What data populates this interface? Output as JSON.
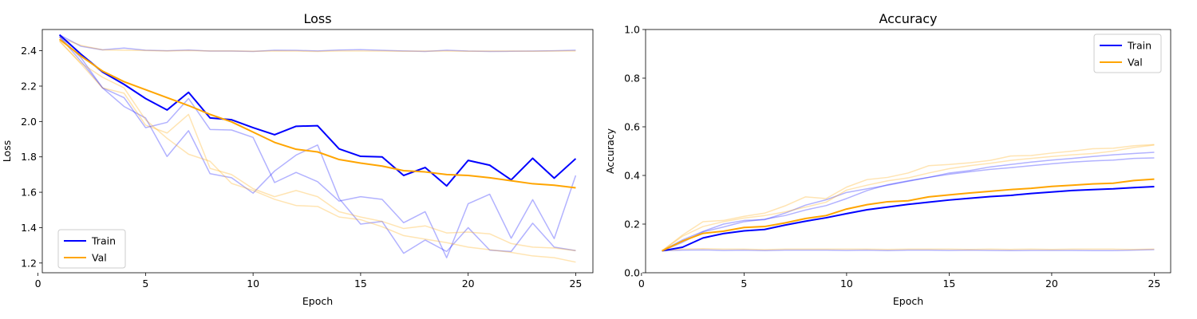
{
  "chart_data": [
    {
      "type": "line",
      "title": "Loss",
      "xlabel": "Epoch",
      "ylabel": "Loss",
      "xlim": [
        0.2,
        25.8
      ],
      "ylim": [
        1.145,
        2.52
      ],
      "xticks": [
        0,
        5,
        10,
        15,
        20,
        25
      ],
      "yticks": [
        1.2,
        1.4,
        1.6,
        1.8,
        2.0,
        2.2,
        2.4
      ],
      "ytick_labels": [
        "1.2",
        "1.4",
        "1.6",
        "1.8",
        "2.0",
        "2.2",
        "2.4"
      ],
      "legend": {
        "position": "lower-left"
      },
      "x": [
        1,
        2,
        3,
        4,
        5,
        6,
        7,
        8,
        9,
        10,
        11,
        12,
        13,
        14,
        15,
        16,
        17,
        18,
        19,
        20,
        21,
        22,
        23,
        24,
        25
      ],
      "series": [
        {
          "name": "Train",
          "role": "main",
          "color": "#0000ff",
          "values": [
            2.49,
            2.38,
            2.28,
            2.21,
            2.13,
            2.065,
            2.165,
            2.02,
            2.01,
            1.965,
            1.925,
            1.973,
            1.976,
            1.845,
            1.803,
            1.8,
            1.695,
            1.74,
            1.636,
            1.78,
            1.753,
            1.67,
            1.792,
            1.68,
            1.79
          ]
        },
        {
          "name": "Val",
          "role": "main",
          "color": "#ffa500",
          "values": [
            2.465,
            2.37,
            2.285,
            2.225,
            2.18,
            2.135,
            2.09,
            2.04,
            1.998,
            1.94,
            1.882,
            1.843,
            1.828,
            1.785,
            1.765,
            1.748,
            1.722,
            1.715,
            1.7,
            1.695,
            1.682,
            1.665,
            1.648,
            1.64,
            1.625
          ]
        },
        {
          "role": "faint",
          "color": "#0000ff",
          "values": [
            2.49,
            2.425,
            2.405,
            2.415,
            2.403,
            2.4,
            2.404,
            2.398,
            2.398,
            2.396,
            2.403,
            2.402,
            2.399,
            2.404,
            2.406,
            2.402,
            2.399,
            2.396,
            2.403,
            2.398,
            2.396,
            2.397,
            2.398,
            2.4,
            2.403
          ]
        },
        {
          "role": "faint",
          "color": "#0000ff",
          "values": [
            2.48,
            2.36,
            2.19,
            2.135,
            1.965,
            1.995,
            2.13,
            1.955,
            1.952,
            1.91,
            1.655,
            1.712,
            1.66,
            1.55,
            1.575,
            1.56,
            1.428,
            1.49,
            1.23,
            1.535,
            1.589,
            1.34,
            1.558,
            1.338,
            1.695
          ]
        },
        {
          "role": "faint",
          "color": "#0000ff",
          "values": [
            2.48,
            2.34,
            2.19,
            2.085,
            2.02,
            1.802,
            1.948,
            1.705,
            1.682,
            1.595,
            1.72,
            1.81,
            1.867,
            1.565,
            1.42,
            1.435,
            1.255,
            1.33,
            1.265,
            1.4,
            1.273,
            1.265,
            1.425,
            1.29,
            1.27
          ]
        },
        {
          "role": "faint",
          "color": "#ffa500",
          "values": [
            2.475,
            2.43,
            2.405,
            2.403,
            2.401,
            2.399,
            2.401,
            2.399,
            2.399,
            2.397,
            2.399,
            2.398,
            2.396,
            2.399,
            2.399,
            2.398,
            2.397,
            2.398,
            2.398,
            2.397,
            2.398,
            2.398,
            2.397,
            2.398,
            2.399
          ]
        },
        {
          "role": "faint",
          "color": "#ffa500",
          "values": [
            2.455,
            2.325,
            2.19,
            2.16,
            1.98,
            1.935,
            2.04,
            1.735,
            1.7,
            1.62,
            1.575,
            1.61,
            1.575,
            1.49,
            1.46,
            1.435,
            1.395,
            1.41,
            1.37,
            1.375,
            1.365,
            1.31,
            1.29,
            1.285,
            1.27
          ]
        },
        {
          "role": "faint",
          "color": "#ffa500",
          "values": [
            2.455,
            2.33,
            2.25,
            2.19,
            2.01,
            1.905,
            1.815,
            1.775,
            1.65,
            1.61,
            1.56,
            1.525,
            1.52,
            1.46,
            1.445,
            1.405,
            1.355,
            1.335,
            1.315,
            1.29,
            1.275,
            1.26,
            1.24,
            1.23,
            1.205
          ]
        }
      ]
    },
    {
      "type": "line",
      "title": "Accuracy",
      "xlabel": "Epoch",
      "ylabel": "Accuracy",
      "xlim": [
        0.2,
        25.8
      ],
      "ylim": [
        0.0,
        1.0
      ],
      "xticks": [
        0,
        5,
        10,
        15,
        20,
        25
      ],
      "yticks": [
        0.0,
        0.2,
        0.4,
        0.6,
        0.8,
        1.0
      ],
      "ytick_labels": [
        "0.0",
        "0.2",
        "0.4",
        "0.6",
        "0.8",
        "1.0"
      ],
      "legend": {
        "position": "upper-right"
      },
      "x": [
        1,
        2,
        3,
        4,
        5,
        6,
        7,
        8,
        9,
        10,
        11,
        12,
        13,
        14,
        15,
        16,
        17,
        18,
        19,
        20,
        21,
        22,
        23,
        24,
        25
      ],
      "series": [
        {
          "name": "Train",
          "role": "main",
          "color": "#0000ff",
          "values": [
            0.09,
            0.105,
            0.143,
            0.161,
            0.172,
            0.178,
            0.196,
            0.212,
            0.226,
            0.243,
            0.259,
            0.27,
            0.281,
            0.29,
            0.299,
            0.306,
            0.313,
            0.318,
            0.326,
            0.332,
            0.338,
            0.342,
            0.345,
            0.35,
            0.354
          ]
        },
        {
          "name": "Val",
          "role": "main",
          "color": "#ffa500",
          "values": [
            0.09,
            0.13,
            0.162,
            0.171,
            0.186,
            0.19,
            0.205,
            0.223,
            0.235,
            0.262,
            0.28,
            0.292,
            0.296,
            0.312,
            0.32,
            0.328,
            0.335,
            0.342,
            0.347,
            0.355,
            0.36,
            0.365,
            0.368,
            0.379,
            0.385
          ]
        },
        {
          "role": "faint",
          "color": "#0000ff",
          "values": [
            0.09,
            0.093,
            0.094,
            0.092,
            0.093,
            0.091,
            0.093,
            0.093,
            0.093,
            0.092,
            0.093,
            0.091,
            0.093,
            0.093,
            0.092,
            0.093,
            0.092,
            0.091,
            0.092,
            0.092,
            0.092,
            0.091,
            0.091,
            0.093,
            0.095
          ]
        },
        {
          "role": "faint",
          "color": "#0000ff",
          "values": [
            0.09,
            0.125,
            0.168,
            0.188,
            0.21,
            0.22,
            0.235,
            0.258,
            0.276,
            0.305,
            0.338,
            0.362,
            0.378,
            0.392,
            0.405,
            0.415,
            0.425,
            0.432,
            0.44,
            0.448,
            0.455,
            0.46,
            0.463,
            0.47,
            0.472
          ]
        },
        {
          "role": "faint",
          "color": "#0000ff",
          "values": [
            0.09,
            0.135,
            0.17,
            0.2,
            0.215,
            0.218,
            0.245,
            0.278,
            0.3,
            0.33,
            0.345,
            0.36,
            0.376,
            0.392,
            0.41,
            0.42,
            0.435,
            0.445,
            0.455,
            0.463,
            0.47,
            0.478,
            0.485,
            0.49,
            0.495
          ]
        },
        {
          "role": "faint",
          "color": "#ffa500",
          "values": [
            0.09,
            0.097,
            0.099,
            0.097,
            0.097,
            0.095,
            0.097,
            0.097,
            0.097,
            0.097,
            0.097,
            0.096,
            0.097,
            0.097,
            0.097,
            0.096,
            0.097,
            0.096,
            0.097,
            0.096,
            0.097,
            0.097,
            0.097,
            0.096,
            0.097
          ]
        },
        {
          "role": "faint",
          "color": "#ffa500",
          "values": [
            0.09,
            0.155,
            0.21,
            0.215,
            0.232,
            0.245,
            0.275,
            0.312,
            0.305,
            0.352,
            0.383,
            0.392,
            0.41,
            0.44,
            0.445,
            0.452,
            0.462,
            0.48,
            0.482,
            0.492,
            0.5,
            0.51,
            0.512,
            0.522,
            0.527
          ]
        },
        {
          "role": "faint",
          "color": "#ffa500",
          "values": [
            0.09,
            0.15,
            0.19,
            0.21,
            0.225,
            0.235,
            0.25,
            0.27,
            0.29,
            0.34,
            0.36,
            0.378,
            0.39,
            0.41,
            0.428,
            0.44,
            0.45,
            0.462,
            0.47,
            0.478,
            0.485,
            0.49,
            0.5,
            0.515,
            0.525
          ]
        }
      ]
    }
  ]
}
